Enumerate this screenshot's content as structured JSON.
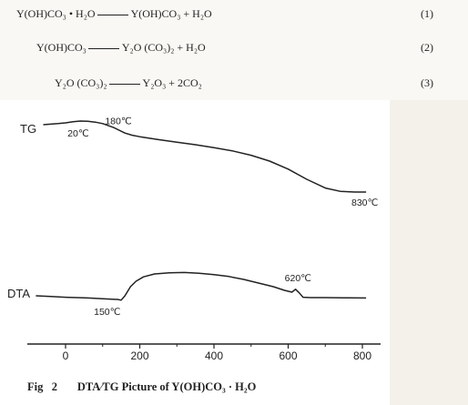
{
  "equations": [
    {
      "left": "Y(OH)CO₃ • H₂O",
      "right": "Y(OH)CO₃ +  H₂O",
      "number": "(1)"
    },
    {
      "left": "Y(OH)CO₃",
      "right": "Y₂O (CO₃)₂ +  H₂O",
      "number": "(2)"
    },
    {
      "left": "Y₂O (CO₃)₂",
      "right": "Y₂O₃ +  2CO₂",
      "number": "(3)"
    }
  ],
  "caption": "Fig   2       DTA∕TG Picture of Y(OH)CO₃ · H₂O",
  "chart_data": {
    "type": "line",
    "title": "",
    "xlabel": "",
    "ylabel": "",
    "xlim": [
      -80,
      830
    ],
    "x_ticks": [
      0,
      200,
      400,
      600,
      800
    ],
    "x_tick_labels": [
      "0",
      "200",
      "400",
      "600",
      "800"
    ],
    "grid": false,
    "legend": "none",
    "series": [
      {
        "name": "TG",
        "x": [
          -60,
          -20,
          0,
          20,
          40,
          60,
          80,
          100,
          130,
          160,
          180,
          200,
          250,
          300,
          350,
          400,
          450,
          500,
          550,
          600,
          650,
          700,
          740,
          780,
          800,
          810
        ],
        "y": [
          0.0,
          0.6,
          1.0,
          1.6,
          2.0,
          1.9,
          1.4,
          0.6,
          -1.6,
          -4.6,
          -5.8,
          -6.6,
          -8.2,
          -9.6,
          -11.0,
          -12.6,
          -14.4,
          -16.8,
          -20.0,
          -24.4,
          -30.0,
          -34.8,
          -36.6,
          -37.0,
          -37.0,
          -37.0
        ]
      },
      {
        "name": "DTA",
        "x": [
          -80,
          -40,
          0,
          60,
          100,
          140,
          150,
          160,
          175,
          190,
          210,
          240,
          280,
          320,
          360,
          400,
          440,
          480,
          520,
          560,
          590,
          610,
          620,
          630,
          640,
          660,
          700,
          750,
          800,
          810
        ],
        "y": [
          0.0,
          -0.4,
          -0.8,
          -1.2,
          -1.6,
          -2.0,
          -2.4,
          0.0,
          5.0,
          8.0,
          10.4,
          12.0,
          12.6,
          12.8,
          12.4,
          11.6,
          10.6,
          9.0,
          7.0,
          5.0,
          3.0,
          2.0,
          3.6,
          1.6,
          -0.8,
          -1.0,
          -1.0,
          -1.1,
          -1.2,
          -1.2
        ]
      }
    ],
    "series_labels": [
      "TG",
      "DTA"
    ],
    "annotations": [
      {
        "series": "TG",
        "x": 20,
        "text": "20℃"
      },
      {
        "series": "TG",
        "x": 180,
        "text": "180℃"
      },
      {
        "series": "TG",
        "x": 800,
        "text": "830℃"
      },
      {
        "series": "DTA",
        "x": 150,
        "text": "150℃"
      },
      {
        "series": "DTA",
        "x": 620,
        "text": "620℃"
      }
    ]
  }
}
